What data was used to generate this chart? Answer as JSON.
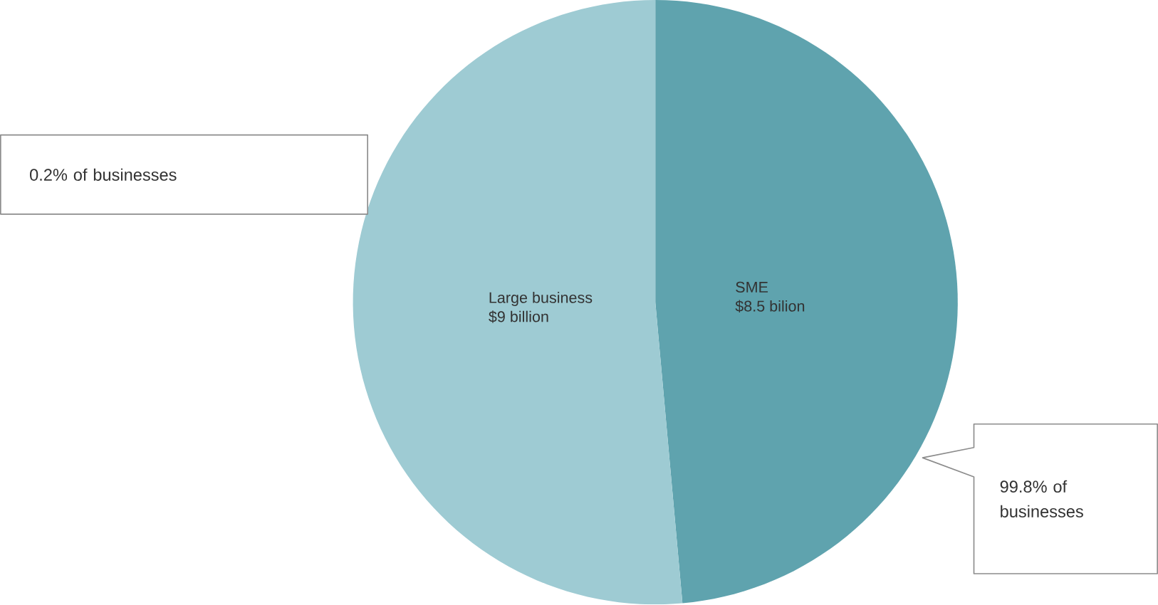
{
  "chart_data": {
    "type": "pie",
    "categories": [
      "SME",
      "Large business"
    ],
    "values": [
      8.5,
      9
    ],
    "value_labels": [
      "$8.5 bilion",
      "$9 billion"
    ],
    "colors": [
      "#5fa3ae",
      "#9ecbd3"
    ],
    "annotations": [
      "0.2% of businesses",
      "99.8% of businesses"
    ]
  }
}
